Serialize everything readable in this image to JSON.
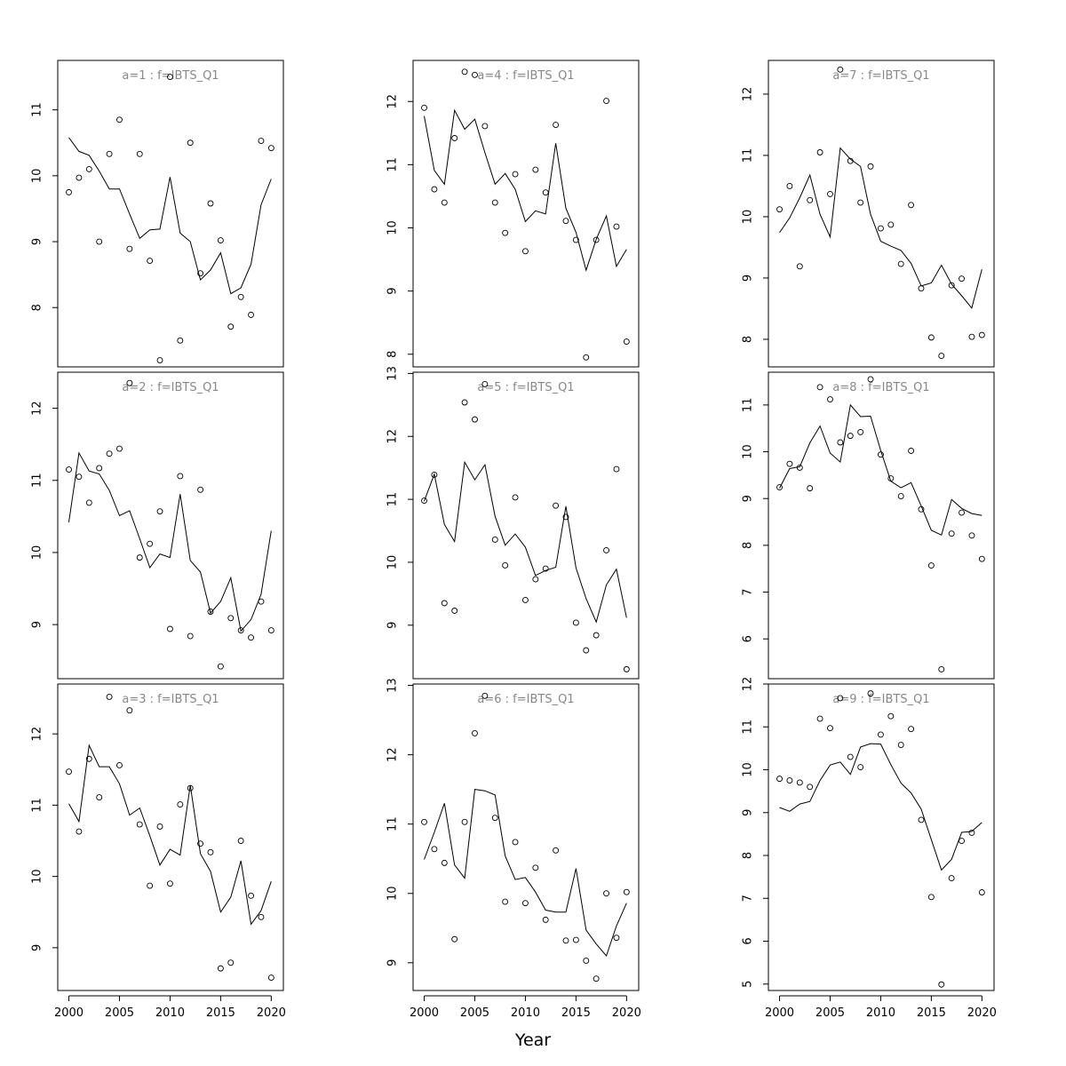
{
  "xlabel": "Year",
  "chart_data": [
    {
      "type": "scatter",
      "title": "a=1 : f=IBTS_Q1",
      "x": [
        2000,
        2001,
        2002,
        2003,
        2004,
        2005,
        2006,
        2007,
        2008,
        2009,
        2010,
        2011,
        2012,
        2013,
        2014,
        2015,
        2016,
        2017,
        2018,
        2019,
        2020
      ],
      "observed": [
        9.75,
        9.97,
        10.1,
        9.0,
        10.33,
        10.85,
        8.89,
        10.33,
        8.71,
        7.2,
        11.5,
        7.5,
        10.5,
        8.52,
        9.58,
        9.02,
        7.71,
        8.16,
        7.89,
        10.53,
        10.42
      ],
      "fitted": [
        10.58,
        10.37,
        10.31,
        10.07,
        9.8,
        9.8,
        9.42,
        9.05,
        9.18,
        9.19,
        9.98,
        9.13,
        9.0,
        8.42,
        8.57,
        8.83,
        8.21,
        8.3,
        8.66,
        9.56,
        9.95
      ],
      "yticks": [
        8,
        9,
        10,
        11
      ],
      "ylim": [
        7.1,
        11.75
      ]
    },
    {
      "type": "scatter",
      "title": "a=2 : f=IBTS_Q1",
      "x": [
        2000,
        2001,
        2002,
        2003,
        2004,
        2005,
        2006,
        2007,
        2008,
        2009,
        2010,
        2011,
        2012,
        2013,
        2014,
        2015,
        2016,
        2017,
        2018,
        2019,
        2020
      ],
      "observed": [
        11.15,
        11.05,
        10.69,
        11.17,
        11.37,
        11.44,
        12.35,
        9.93,
        10.12,
        10.57,
        8.94,
        11.06,
        8.84,
        10.87,
        9.18,
        8.42,
        9.09,
        8.92,
        8.82,
        9.32,
        8.92
      ],
      "fitted": [
        10.42,
        11.38,
        11.13,
        11.09,
        10.86,
        10.51,
        10.58,
        10.19,
        9.79,
        9.98,
        9.93,
        10.81,
        9.89,
        9.73,
        9.16,
        9.32,
        9.65,
        8.91,
        9.07,
        9.42,
        10.3
      ],
      "yticks": [
        9,
        10,
        11,
        12
      ],
      "ylim": [
        8.25,
        12.5
      ]
    },
    {
      "type": "scatter",
      "title": "a=3 : f=IBTS_Q1",
      "x": [
        2000,
        2001,
        2002,
        2003,
        2004,
        2005,
        2006,
        2007,
        2008,
        2009,
        2010,
        2011,
        2012,
        2013,
        2014,
        2015,
        2016,
        2017,
        2018,
        2019,
        2020
      ],
      "observed": [
        11.47,
        10.63,
        11.65,
        11.11,
        12.52,
        11.56,
        12.33,
        10.73,
        9.87,
        10.7,
        9.9,
        11.01,
        11.24,
        10.46,
        10.34,
        8.71,
        8.79,
        10.5,
        9.73,
        9.43,
        8.58
      ],
      "fitted": [
        11.02,
        10.77,
        11.84,
        11.54,
        11.54,
        11.3,
        10.86,
        10.96,
        10.57,
        10.16,
        10.38,
        10.3,
        11.28,
        10.32,
        10.07,
        9.5,
        9.71,
        10.22,
        9.33,
        9.52,
        9.93
      ],
      "yticks": [
        9,
        10,
        11,
        12
      ],
      "ylim": [
        8.4,
        12.7
      ]
    },
    {
      "type": "scatter",
      "title": "a=4 : f=IBTS_Q1",
      "x": [
        2000,
        2001,
        2002,
        2003,
        2004,
        2005,
        2006,
        2007,
        2008,
        2009,
        2010,
        2011,
        2012,
        2013,
        2014,
        2015,
        2016,
        2017,
        2018,
        2019,
        2020
      ],
      "observed": [
        11.9,
        10.61,
        10.4,
        11.42,
        12.47,
        12.42,
        11.61,
        10.4,
        9.92,
        10.85,
        9.63,
        10.92,
        10.56,
        11.63,
        10.11,
        9.81,
        7.95,
        9.81,
        12.01,
        10.02,
        8.2
      ],
      "fitted": [
        11.77,
        10.91,
        10.69,
        11.86,
        11.56,
        11.72,
        11.19,
        10.69,
        10.86,
        10.61,
        10.1,
        10.27,
        10.22,
        11.34,
        10.31,
        9.93,
        9.33,
        9.82,
        10.19,
        9.39,
        9.66
      ],
      "yticks": [
        8,
        9,
        10,
        11,
        12
      ],
      "ylim": [
        7.8,
        12.65
      ]
    },
    {
      "type": "scatter",
      "title": "a=5 : f=IBTS_Q1",
      "x": [
        2000,
        2001,
        2002,
        2003,
        2004,
        2005,
        2006,
        2007,
        2008,
        2009,
        2010,
        2011,
        2012,
        2013,
        2014,
        2015,
        2016,
        2017,
        2018,
        2019,
        2020
      ],
      "observed": [
        10.98,
        11.39,
        9.35,
        9.23,
        12.54,
        12.27,
        12.83,
        10.36,
        9.95,
        11.03,
        9.4,
        9.73,
        9.9,
        10.9,
        10.72,
        9.04,
        8.6,
        8.84,
        10.19,
        11.48,
        8.3
      ],
      "fitted": [
        10.97,
        11.4,
        10.6,
        10.33,
        11.59,
        11.31,
        11.55,
        10.73,
        10.27,
        10.45,
        10.24,
        9.79,
        9.87,
        9.92,
        10.89,
        9.91,
        9.42,
        9.05,
        9.64,
        9.89,
        9.12
      ],
      "yticks": [
        9,
        10,
        11,
        12,
        13
      ],
      "ylim": [
        8.15,
        13.02
      ]
    },
    {
      "type": "scatter",
      "title": "a=6 : f=IBTS_Q1",
      "x": [
        2000,
        2001,
        2002,
        2003,
        2004,
        2005,
        2006,
        2007,
        2008,
        2009,
        2010,
        2011,
        2012,
        2013,
        2014,
        2015,
        2016,
        2017,
        2018,
        2019,
        2020
      ],
      "observed": [
        11.03,
        10.64,
        10.44,
        9.34,
        11.03,
        12.31,
        12.85,
        11.09,
        9.88,
        10.74,
        9.86,
        10.37,
        9.62,
        10.62,
        9.32,
        9.33,
        9.03,
        8.77,
        10.0,
        9.36,
        10.02
      ],
      "fitted": [
        10.49,
        10.88,
        11.3,
        10.41,
        10.22,
        11.5,
        11.48,
        11.42,
        10.54,
        10.2,
        10.23,
        10.02,
        9.76,
        9.73,
        9.73,
        10.36,
        9.47,
        9.27,
        9.1,
        9.53,
        9.86
      ],
      "yticks": [
        9,
        10,
        11,
        12,
        13
      ],
      "ylim": [
        8.6,
        13.02
      ]
    },
    {
      "type": "scatter",
      "title": "a=7 : f=IBTS_Q1",
      "x": [
        2000,
        2001,
        2002,
        2003,
        2004,
        2005,
        2006,
        2007,
        2008,
        2009,
        2010,
        2011,
        2012,
        2013,
        2014,
        2015,
        2016,
        2017,
        2018,
        2019,
        2020
      ],
      "observed": [
        10.12,
        10.5,
        9.19,
        10.27,
        11.05,
        10.37,
        12.4,
        10.91,
        10.23,
        10.82,
        9.81,
        9.87,
        9.23,
        10.19,
        8.83,
        8.03,
        7.73,
        8.88,
        8.99,
        8.04,
        8.07
      ],
      "fitted": [
        9.74,
        9.98,
        10.31,
        10.68,
        10.04,
        9.67,
        11.12,
        10.94,
        10.82,
        10.04,
        9.6,
        9.52,
        9.45,
        9.24,
        8.87,
        8.92,
        9.21,
        8.9,
        8.71,
        8.51,
        9.14
      ],
      "yticks": [
        8,
        9,
        10,
        11,
        12
      ],
      "ylim": [
        7.55,
        12.55
      ]
    },
    {
      "type": "scatter",
      "title": "a=8 : f=IBTS_Q1",
      "x": [
        2000,
        2001,
        2002,
        2003,
        2004,
        2005,
        2006,
        2007,
        2008,
        2009,
        2010,
        2011,
        2012,
        2013,
        2014,
        2015,
        2016,
        2017,
        2018,
        2019,
        2020
      ],
      "observed": [
        9.24,
        9.74,
        9.66,
        9.22,
        11.38,
        11.12,
        10.2,
        10.34,
        10.42,
        11.55,
        9.94,
        9.43,
        9.05,
        10.02,
        8.77,
        7.57,
        5.35,
        8.25,
        8.7,
        8.21,
        7.71
      ],
      "fitted": [
        9.22,
        9.64,
        9.68,
        10.19,
        10.55,
        9.97,
        9.78,
        11.0,
        10.75,
        10.76,
        10.03,
        9.37,
        9.23,
        9.34,
        8.84,
        8.32,
        8.22,
        8.98,
        8.79,
        8.68,
        8.64
      ],
      "yticks": [
        6,
        7,
        8,
        9,
        10,
        11
      ],
      "ylim": [
        5.15,
        11.7
      ]
    },
    {
      "type": "scatter",
      "title": "a=9 : f=IBTS_Q1",
      "x": [
        2000,
        2001,
        2002,
        2003,
        2004,
        2005,
        2006,
        2007,
        2008,
        2009,
        2010,
        2011,
        2012,
        2013,
        2014,
        2015,
        2016,
        2017,
        2018,
        2019,
        2020
      ],
      "observed": [
        9.79,
        9.75,
        9.7,
        9.6,
        11.19,
        10.97,
        11.67,
        10.3,
        10.06,
        11.78,
        10.82,
        11.25,
        10.58,
        10.95,
        8.83,
        7.03,
        4.99,
        7.47,
        8.34,
        8.53,
        7.14
      ],
      "fitted": [
        9.12,
        9.03,
        9.2,
        9.26,
        9.75,
        10.11,
        10.18,
        9.89,
        10.53,
        10.61,
        10.6,
        10.12,
        9.69,
        9.46,
        9.08,
        8.37,
        7.66,
        7.91,
        8.54,
        8.56,
        8.77
      ],
      "yticks": [
        5,
        6,
        7,
        8,
        9,
        10,
        11,
        12
      ],
      "ylim": [
        4.85,
        12.0
      ]
    }
  ],
  "x_axis": {
    "ticks": [
      2000,
      2005,
      2010,
      2015,
      2020
    ],
    "xlim": [
      1998.9,
      2021.2
    ]
  }
}
